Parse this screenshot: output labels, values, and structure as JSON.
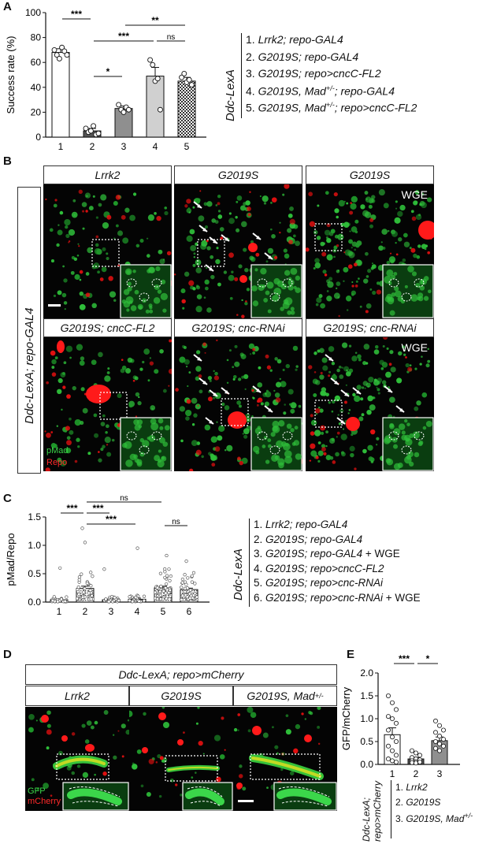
{
  "panel_A": {
    "letter": "A",
    "legend_label": "Ddc-LexA",
    "legend": [
      {
        "num": "1.",
        "parts": [
          {
            "t": "Lrrk2; repo-GAL4",
            "i": true
          }
        ]
      },
      {
        "num": "2.",
        "parts": [
          {
            "t": "G2019S; repo-GAL4",
            "i": true
          }
        ]
      },
      {
        "num": "3.",
        "parts": [
          {
            "t": "G2019S; repo>cncC-FL2",
            "i": true
          }
        ]
      },
      {
        "num": "4.",
        "parts": [
          {
            "t": "G2019S, Mad",
            "i": true
          },
          {
            "t": "+/-",
            "sup": true
          },
          {
            "t": "; repo-GAL4",
            "i": true
          }
        ]
      },
      {
        "num": "5.",
        "parts": [
          {
            "t": "G2019S, Mad",
            "i": true
          },
          {
            "t": "+/-",
            "sup": true
          },
          {
            "t": "; repo>cncC-FL2",
            "i": true
          }
        ]
      }
    ]
  },
  "panel_B": {
    "letter": "B",
    "side_label": "Ddc-LexA; repo-GAL4",
    "row1_headers": [
      "Lrrk2",
      "G2019S",
      "G2019S"
    ],
    "row2_headers": [
      "G2019S; cncC-FL2",
      "G2019S; cnc-RNAi",
      "G2019S; cnc-RNAi"
    ],
    "wge_label": "WGE",
    "channel_green": "pMad",
    "channel_red": "Repo"
  },
  "panel_C": {
    "letter": "C",
    "legend_label": "Ddc-LexA",
    "legend": [
      {
        "num": "1.",
        "parts": [
          {
            "t": "Lrrk2; repo-GAL4",
            "i": true
          }
        ]
      },
      {
        "num": "2.",
        "parts": [
          {
            "t": "G2019S; repo-GAL4",
            "i": true
          }
        ]
      },
      {
        "num": "3.",
        "parts": [
          {
            "t": "G2019S; repo-GAL4",
            "i": true
          },
          {
            "t": " + WGE"
          }
        ]
      },
      {
        "num": "4.",
        "parts": [
          {
            "t": "G2019S; repo>cncC-FL2",
            "i": true
          }
        ]
      },
      {
        "num": "5.",
        "parts": [
          {
            "t": "G2019S; repo>cnc-RNAi",
            "i": true
          }
        ]
      },
      {
        "num": "6.",
        "parts": [
          {
            "t": "G2019S; repo>cnc-RNAi",
            "i": true
          },
          {
            "t": " + WGE"
          }
        ]
      }
    ]
  },
  "panel_D": {
    "letter": "D",
    "title": "Ddc-LexA; repo>mCherry",
    "headers": [
      [
        {
          "t": "Lrrk2",
          "i": true
        }
      ],
      [
        {
          "t": "G2019S",
          "i": true
        }
      ],
      [
        {
          "t": "G2019S, Mad",
          "i": true
        },
        {
          "t": "+/-",
          "sup": true
        }
      ]
    ],
    "channel_green": "GFP",
    "channel_red": "mCherry"
  },
  "panel_E": {
    "letter": "E",
    "side_label_1": "Ddc-LexA;",
    "side_label_2": "repo>mCherry",
    "legend": [
      {
        "num": "1.",
        "parts": [
          {
            "t": "Lrrk2",
            "i": true
          }
        ]
      },
      {
        "num": "2.",
        "parts": [
          {
            "t": "G2019S",
            "i": true
          }
        ]
      },
      {
        "num": "3.",
        "parts": [
          {
            "t": "G2019S, Mad",
            "i": true
          },
          {
            "t": "+/-",
            "sup": true
          }
        ]
      }
    ]
  },
  "chart_data": [
    {
      "id": "A",
      "type": "bar",
      "ylabel": "Success rate (%)",
      "categories": [
        "1",
        "2",
        "3",
        "4",
        "5"
      ],
      "values": [
        68,
        5,
        23,
        49,
        45
      ],
      "errors": [
        3,
        2,
        2,
        7,
        3
      ],
      "ylim": [
        0,
        100
      ],
      "yticks": [
        0,
        20,
        40,
        60,
        80,
        100
      ],
      "bar_colors": [
        "#ffffff",
        "#555555",
        "#8f8f8f",
        "#d0d0d0",
        "#cfcfcf"
      ],
      "points": [
        [
          70,
          66,
          63,
          72,
          69,
          66
        ],
        [
          7,
          4,
          5,
          9,
          2,
          3
        ],
        [
          26,
          22,
          20,
          24,
          22
        ],
        [
          62,
          58,
          45,
          47,
          22
        ],
        [
          48,
          51,
          44,
          46,
          42
        ]
      ],
      "sig": [
        {
          "from": 1,
          "to": 2,
          "label": "***"
        },
        {
          "from": 2,
          "to": 3,
          "label": "*"
        },
        {
          "from": 2,
          "to": 4,
          "label": "***"
        },
        {
          "from": 3,
          "to": 5,
          "label": "**"
        },
        {
          "from": 4,
          "to": 5,
          "label": "ns"
        }
      ]
    },
    {
      "id": "C",
      "type": "bar",
      "ylabel": "pMad/Repo",
      "categories": [
        "1",
        "2",
        "3",
        "4",
        "5",
        "6"
      ],
      "values": [
        0.04,
        0.24,
        0.04,
        0.05,
        0.25,
        0.22
      ],
      "errors": [
        0.01,
        0.04,
        0.015,
        0.02,
        0.03,
        0.025
      ],
      "ylim": [
        0,
        1.5
      ],
      "yticks": [
        0.0,
        0.5,
        1.0,
        1.5
      ],
      "sig": [
        {
          "from": 1,
          "to": 2,
          "label": "***"
        },
        {
          "from": 2,
          "to": 3,
          "label": "***"
        },
        {
          "from": 2,
          "to": 4,
          "label": "***"
        },
        {
          "from": 2,
          "to": 5,
          "label": "ns"
        },
        {
          "from": 5,
          "to": 6,
          "label": "ns"
        }
      ]
    },
    {
      "id": "E",
      "type": "bar",
      "ylabel": "GFP/mCherry",
      "categories": [
        "1",
        "2",
        "3"
      ],
      "values": [
        0.65,
        0.12,
        0.52
      ],
      "errors": [
        0.15,
        0.03,
        0.08
      ],
      "ylim": [
        0,
        2.0
      ],
      "yticks": [
        0.0,
        0.5,
        1.0,
        1.5,
        2.0
      ],
      "bar_colors": [
        "#ffffff",
        "#555555",
        "#8f8f8f"
      ],
      "points": [
        [
          1.5,
          1.35,
          1.2,
          1.05,
          1.0,
          0.9,
          0.75,
          0.6,
          0.5,
          0.4,
          0.3,
          0.2,
          0.12,
          0.08,
          0.05
        ],
        [
          0.3,
          0.25,
          0.2,
          0.15,
          0.12,
          0.1,
          0.08,
          0.06,
          0.05,
          0.04,
          0.03
        ],
        [
          0.95,
          0.85,
          0.75,
          0.7,
          0.62,
          0.55,
          0.5,
          0.45,
          0.4,
          0.35,
          0.3
        ]
      ],
      "sig": [
        {
          "from": 1,
          "to": 2,
          "label": "***"
        },
        {
          "from": 2,
          "to": 3,
          "label": "*"
        }
      ]
    }
  ]
}
